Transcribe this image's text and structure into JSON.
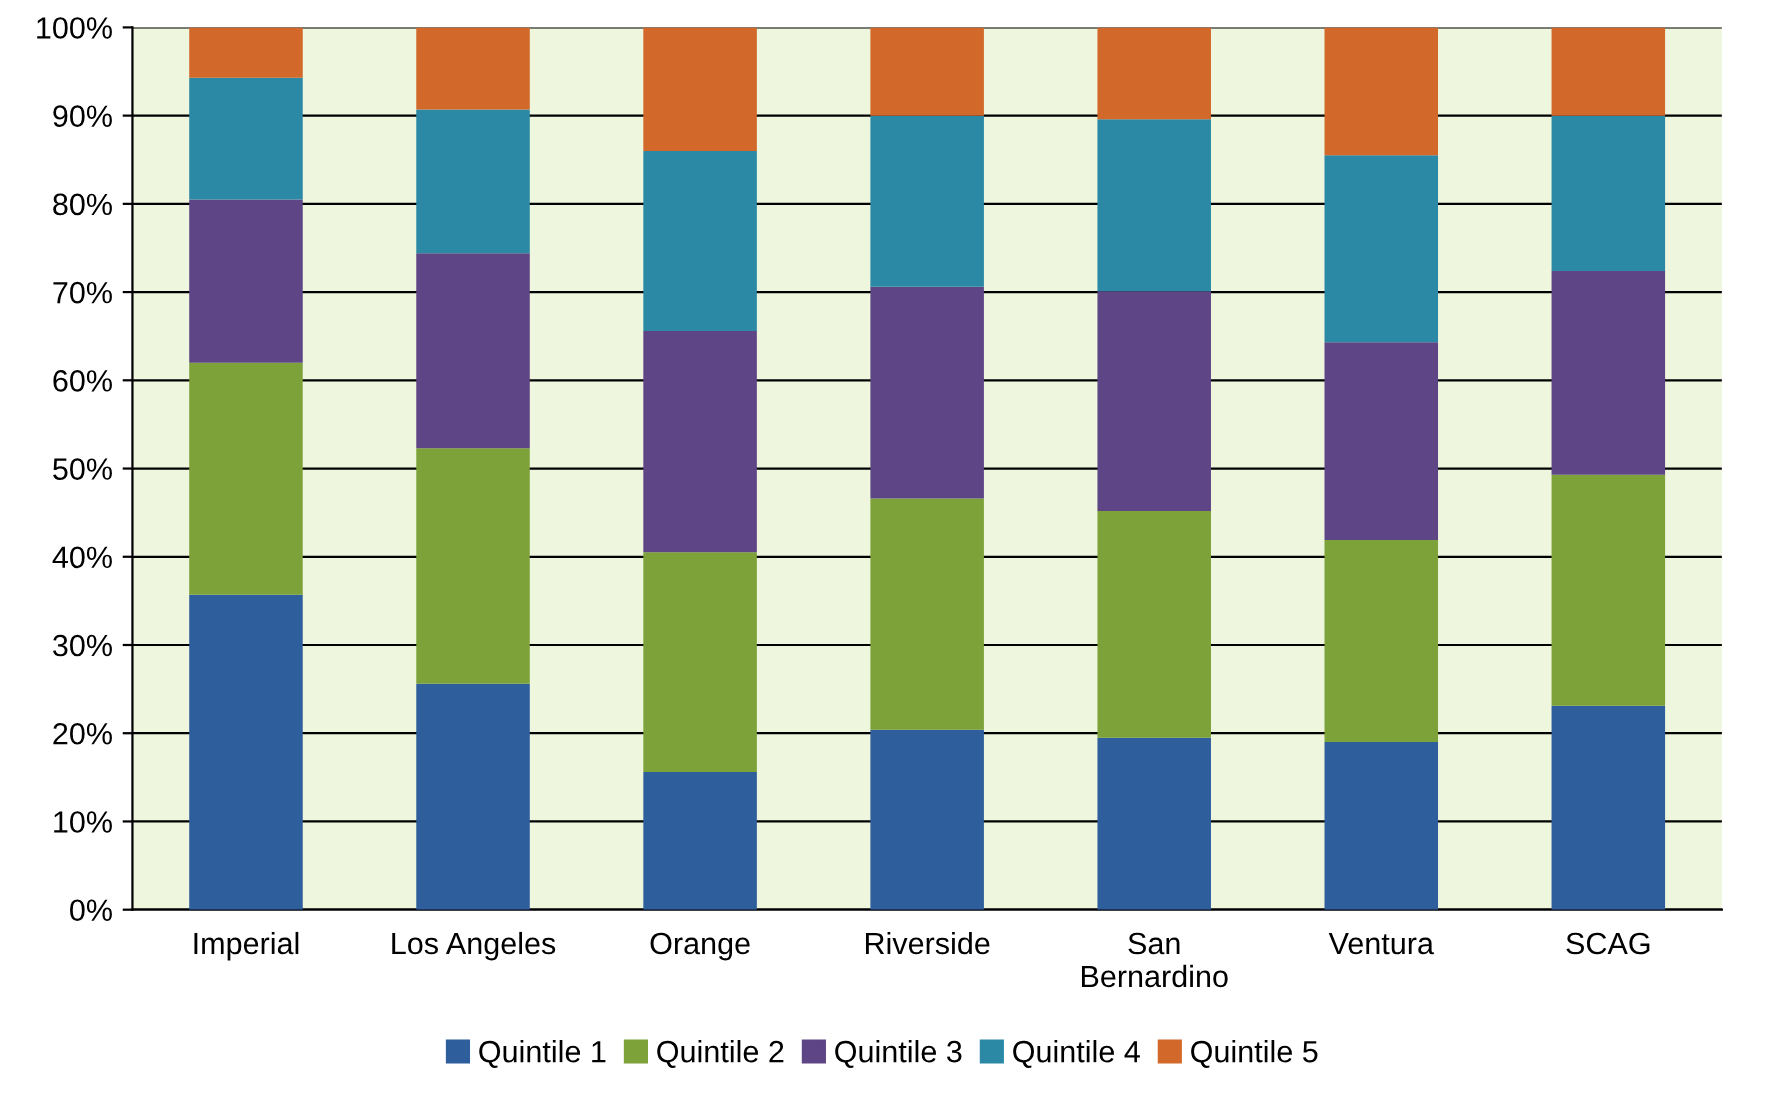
{
  "chart_data": {
    "type": "bar",
    "stacked": true,
    "categories": [
      "Imperial",
      "Los Angeles",
      "Orange",
      "Riverside",
      "San\nBernardino",
      "Ventura",
      "SCAG"
    ],
    "series": [
      {
        "name": "Quintile 1",
        "color": "#2f5e9c",
        "values": [
          35.7,
          25.6,
          15.6,
          20.4,
          19.5,
          19.0,
          23.1
        ]
      },
      {
        "name": "Quintile 2",
        "color": "#7da23a",
        "values": [
          26.3,
          26.7,
          24.9,
          26.2,
          25.7,
          22.9,
          26.2
        ]
      },
      {
        "name": "Quintile 3",
        "color": "#5e4585",
        "values": [
          18.5,
          22.1,
          25.1,
          24.0,
          24.9,
          22.4,
          23.1
        ]
      },
      {
        "name": "Quintile 4",
        "color": "#2b89a5",
        "values": [
          13.8,
          16.3,
          20.4,
          19.4,
          19.5,
          21.2,
          17.6
        ]
      },
      {
        "name": "Quintile 5",
        "color": "#d2692a",
        "values": [
          5.7,
          9.3,
          14.0,
          10.0,
          10.4,
          14.5,
          10.0
        ]
      }
    ],
    "ylim": [
      0,
      100
    ],
    "yticks": [
      {
        "value": 0,
        "label": "0%"
      },
      {
        "value": 10,
        "label": "10%"
      },
      {
        "value": 20,
        "label": "20%"
      },
      {
        "value": 30,
        "label": "30%"
      },
      {
        "value": 40,
        "label": "40%"
      },
      {
        "value": 50,
        "label": "50%"
      },
      {
        "value": 60,
        "label": "60%"
      },
      {
        "value": 70,
        "label": "70%"
      },
      {
        "value": 80,
        "label": "80%"
      },
      {
        "value": 90,
        "label": "90%"
      },
      {
        "value": 100,
        "label": "100%"
      }
    ],
    "grid": "y",
    "legend": "bottom"
  }
}
